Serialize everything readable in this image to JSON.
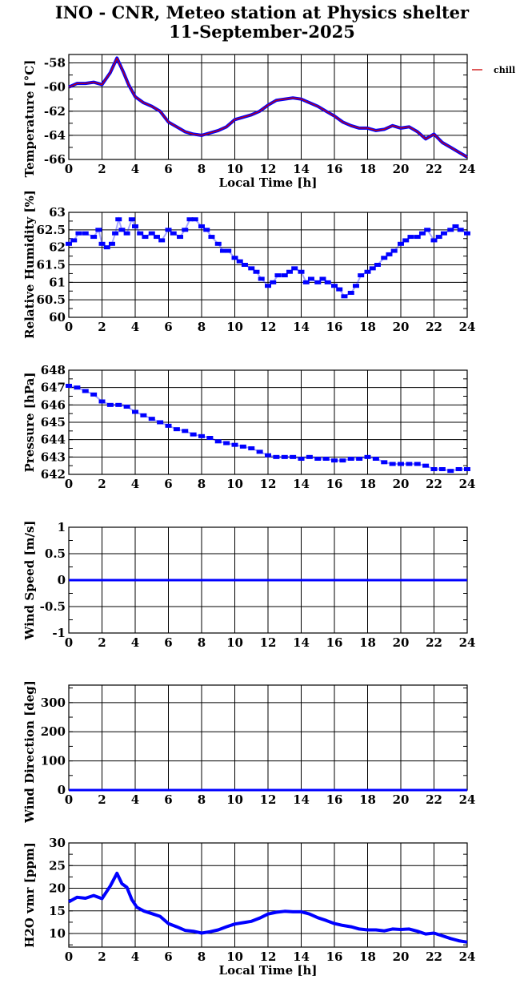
{
  "header": {
    "title": "INO - CNR, Meteo station at Physics shelter",
    "date": "11-September-2025"
  },
  "colors": {
    "series": "#0000ff",
    "chill": "#cc0000",
    "grid": "#000000"
  },
  "chart_data": [
    {
      "type": "line",
      "ylabel": "Temperature [°C]",
      "xlabel": "Local Time [h]",
      "xlim": [
        0,
        24
      ],
      "ylim": [
        -66,
        -57.3
      ],
      "x_ticks": [
        0,
        2,
        4,
        6,
        8,
        10,
        12,
        14,
        16,
        18,
        20,
        22,
        24
      ],
      "y_ticks": [
        -66,
        -64,
        -62,
        -60,
        -58
      ],
      "legend": {
        "entries": [
          "chill"
        ],
        "placement": "right"
      },
      "series": [
        {
          "x": [
            0,
            0.5,
            1,
            1.5,
            2,
            2.5,
            2.9,
            3.3,
            3.6,
            4,
            4.5,
            5,
            5.5,
            6,
            6.5,
            7,
            7.5,
            8,
            8.5,
            9,
            9.5,
            10,
            10.5,
            11,
            11.5,
            12,
            12.5,
            13,
            13.5,
            14,
            14.5,
            15,
            15.5,
            16,
            16.5,
            17,
            17.5,
            18,
            18.5,
            19,
            19.5,
            20,
            20.5,
            21,
            21.5,
            22,
            22.5,
            23,
            23.5,
            24
          ],
          "y": [
            -60.0,
            -59.7,
            -59.7,
            -59.6,
            -59.8,
            -58.8,
            -57.6,
            -58.8,
            -59.8,
            -60.8,
            -61.3,
            -61.6,
            -62.0,
            -62.9,
            -63.3,
            -63.7,
            -63.9,
            -64.0,
            -63.8,
            -63.6,
            -63.3,
            -62.7,
            -62.5,
            -62.3,
            -62.0,
            -61.5,
            -61.1,
            -61.0,
            -60.9,
            -61.0,
            -61.3,
            -61.6,
            -62.0,
            -62.4,
            -62.9,
            -63.2,
            -63.4,
            -63.4,
            -63.6,
            -63.5,
            -63.2,
            -63.4,
            -63.3,
            -63.7,
            -64.3,
            -63.9,
            -64.6,
            -65.0,
            -65.4,
            -65.8
          ],
          "color": "#0000ff"
        },
        {
          "name": "chill",
          "x": [
            0,
            0.5,
            1,
            1.5,
            2,
            2.5,
            2.9,
            3.3,
            3.6,
            4,
            4.5,
            5,
            5.5,
            6,
            6.5,
            7,
            7.5,
            8,
            8.5,
            9,
            9.5,
            10,
            10.5,
            11,
            11.5,
            12,
            12.5,
            13,
            13.5,
            14,
            14.5,
            15,
            15.5,
            16,
            16.5,
            17,
            17.5,
            18,
            18.5,
            19,
            19.5,
            20,
            20.5,
            21,
            21.5,
            22,
            22.5,
            23,
            23.5,
            24
          ],
          "y": [
            -60.0,
            -59.7,
            -59.7,
            -59.6,
            -59.8,
            -58.8,
            -57.6,
            -58.8,
            -59.8,
            -60.8,
            -61.3,
            -61.6,
            -62.0,
            -62.9,
            -63.3,
            -63.7,
            -63.9,
            -64.0,
            -63.8,
            -63.6,
            -63.3,
            -62.7,
            -62.5,
            -62.3,
            -62.0,
            -61.5,
            -61.1,
            -61.0,
            -60.9,
            -61.0,
            -61.3,
            -61.6,
            -62.0,
            -62.4,
            -62.9,
            -63.2,
            -63.4,
            -63.4,
            -63.6,
            -63.5,
            -63.2,
            -63.4,
            -63.3,
            -63.7,
            -64.3,
            -63.9,
            -64.6,
            -65.0,
            -65.4,
            -65.8
          ],
          "color": "#cc0000"
        }
      ]
    },
    {
      "type": "scatter",
      "ylabel": "Relative Humidity [%]",
      "xlim": [
        0,
        24
      ],
      "ylim": [
        60,
        63
      ],
      "x_ticks": [
        0,
        2,
        4,
        6,
        8,
        10,
        12,
        14,
        16,
        18,
        20,
        22,
        24
      ],
      "y_ticks": [
        60,
        60.5,
        61,
        61.5,
        62,
        62.5,
        63
      ],
      "series": [
        {
          "x": [
            0,
            0.3,
            0.6,
            1,
            1.5,
            1.8,
            2,
            2.3,
            2.6,
            2.8,
            3,
            3.2,
            3.5,
            3.8,
            4,
            4.3,
            4.6,
            5,
            5.3,
            5.6,
            6,
            6.3,
            6.7,
            7,
            7.3,
            7.6,
            8,
            8.3,
            8.6,
            9,
            9.3,
            9.6,
            10,
            10.3,
            10.6,
            11,
            11.3,
            11.6,
            12,
            12.3,
            12.6,
            13,
            13.3,
            13.6,
            14,
            14.3,
            14.6,
            15,
            15.3,
            15.6,
            16,
            16.3,
            16.6,
            17,
            17.3,
            17.6,
            18,
            18.3,
            18.6,
            19,
            19.3,
            19.6,
            20,
            20.3,
            20.6,
            21,
            21.3,
            21.6,
            22,
            22.3,
            22.6,
            23,
            23.3,
            23.6,
            24
          ],
          "y": [
            62.1,
            62.2,
            62.4,
            62.4,
            62.3,
            62.5,
            62.1,
            62.0,
            62.1,
            62.4,
            62.8,
            62.5,
            62.4,
            62.8,
            62.6,
            62.4,
            62.3,
            62.4,
            62.3,
            62.2,
            62.5,
            62.4,
            62.3,
            62.5,
            62.8,
            62.8,
            62.6,
            62.5,
            62.3,
            62.1,
            61.9,
            61.9,
            61.7,
            61.6,
            61.5,
            61.4,
            61.3,
            61.1,
            60.9,
            61.0,
            61.2,
            61.2,
            61.3,
            61.4,
            61.3,
            61.0,
            61.1,
            61.0,
            61.1,
            61.0,
            60.9,
            60.8,
            60.6,
            60.7,
            60.9,
            61.2,
            61.3,
            61.4,
            61.5,
            61.7,
            61.8,
            61.9,
            62.1,
            62.2,
            62.3,
            62.3,
            62.4,
            62.5,
            62.2,
            62.3,
            62.4,
            62.5,
            62.6,
            62.5,
            62.4
          ],
          "color": "#0000ff"
        }
      ]
    },
    {
      "type": "scatter",
      "ylabel": "Pressure [hPa]",
      "xlim": [
        0,
        24
      ],
      "ylim": [
        642,
        648
      ],
      "x_ticks": [
        0,
        2,
        4,
        6,
        8,
        10,
        12,
        14,
        16,
        18,
        20,
        22,
        24
      ],
      "y_ticks": [
        642,
        643,
        644,
        645,
        646,
        647,
        648
      ],
      "series": [
        {
          "x": [
            0,
            0.5,
            1,
            1.5,
            2,
            2.5,
            3,
            3.5,
            4,
            4.5,
            5,
            5.5,
            6,
            6.5,
            7,
            7.5,
            8,
            8.5,
            9,
            9.5,
            10,
            10.5,
            11,
            11.5,
            12,
            12.5,
            13,
            13.5,
            14,
            14.5,
            15,
            15.5,
            16,
            16.5,
            17,
            17.5,
            18,
            18.5,
            19,
            19.5,
            20,
            20.5,
            21,
            21.5,
            22,
            22.5,
            23,
            23.5,
            24
          ],
          "y": [
            647.1,
            647.0,
            646.8,
            646.6,
            646.2,
            646.0,
            646.0,
            645.9,
            645.6,
            645.4,
            645.2,
            645.0,
            644.8,
            644.6,
            644.5,
            644.3,
            644.2,
            644.1,
            643.9,
            643.8,
            643.7,
            643.6,
            643.5,
            643.3,
            643.1,
            643.0,
            643.0,
            643.0,
            642.9,
            643.0,
            642.9,
            642.9,
            642.8,
            642.8,
            642.9,
            642.9,
            643.0,
            642.9,
            642.7,
            642.6,
            642.6,
            642.6,
            642.6,
            642.5,
            642.3,
            642.3,
            642.2,
            642.3,
            642.3
          ],
          "color": "#0000ff"
        }
      ]
    },
    {
      "type": "line",
      "ylabel": "Wind Speed [m/s]",
      "xlim": [
        0,
        24
      ],
      "ylim": [
        -1,
        1
      ],
      "x_ticks": [
        0,
        2,
        4,
        6,
        8,
        10,
        12,
        14,
        16,
        18,
        20,
        22,
        24
      ],
      "y_ticks": [
        -1,
        -0.5,
        0,
        0.5,
        1
      ],
      "series": [
        {
          "x": [
            0,
            24
          ],
          "y": [
            0,
            0
          ],
          "color": "#0000ff"
        }
      ]
    },
    {
      "type": "line",
      "ylabel": "Wind Direction [deg]",
      "xlim": [
        0,
        24
      ],
      "ylim": [
        0,
        360
      ],
      "x_ticks": [
        0,
        2,
        4,
        6,
        8,
        10,
        12,
        14,
        16,
        18,
        20,
        22,
        24
      ],
      "y_ticks": [
        0,
        100,
        200,
        300
      ],
      "series": [
        {
          "x": [
            0,
            24
          ],
          "y": [
            0,
            0
          ],
          "color": "#0000ff"
        }
      ]
    },
    {
      "type": "line",
      "ylabel": "H2O vmr [ppm]",
      "xlabel": "Local Time [h]",
      "xlim": [
        0,
        24
      ],
      "ylim": [
        7,
        30
      ],
      "x_ticks": [
        0,
        2,
        4,
        6,
        8,
        10,
        12,
        14,
        16,
        18,
        20,
        22,
        24
      ],
      "y_ticks": [
        10,
        15,
        20,
        25,
        30
      ],
      "series": [
        {
          "x": [
            0,
            0.5,
            1,
            1.5,
            2,
            2.5,
            2.9,
            3.2,
            3.5,
            3.8,
            4.1,
            4.5,
            5,
            5.5,
            6,
            6.5,
            7,
            7.5,
            8,
            8.5,
            9,
            9.5,
            10,
            10.5,
            11,
            11.5,
            12,
            12.5,
            13,
            13.5,
            14,
            14.5,
            15,
            15.5,
            16,
            16.5,
            17,
            17.5,
            18,
            18.5,
            19,
            19.5,
            20,
            20.5,
            21,
            21.5,
            22,
            22.5,
            23,
            23.5,
            24
          ],
          "y": [
            17.0,
            18.0,
            17.8,
            18.4,
            17.7,
            20.5,
            23.3,
            21.0,
            20.2,
            17.5,
            15.8,
            15.0,
            14.4,
            13.8,
            12.2,
            11.5,
            10.7,
            10.5,
            10.1,
            10.4,
            10.8,
            11.5,
            12.1,
            12.4,
            12.7,
            13.4,
            14.3,
            14.7,
            14.9,
            14.8,
            14.8,
            14.3,
            13.5,
            12.9,
            12.2,
            11.8,
            11.5,
            11.0,
            10.8,
            10.8,
            10.6,
            11.0,
            10.9,
            11.0,
            10.5,
            9.9,
            10.1,
            9.5,
            8.9,
            8.4,
            8.1
          ],
          "color": "#0000ff"
        }
      ]
    }
  ]
}
